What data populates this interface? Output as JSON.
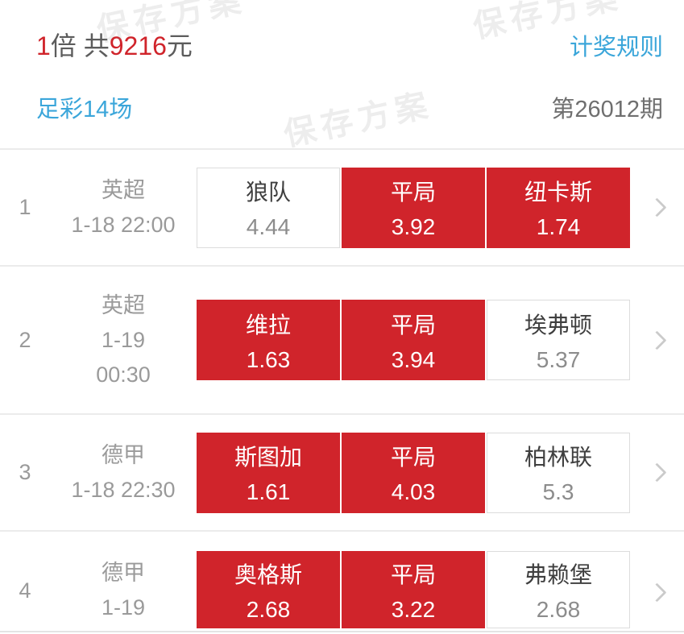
{
  "watermark": {
    "text": "保存方案"
  },
  "colors": {
    "accent_red": "#d0242b",
    "link_blue": "#3ba6da"
  },
  "header": {
    "stake_multiplier": "1",
    "multiplier_unit": "倍",
    "total_prefix": "共",
    "total_amount": "9216",
    "total_unit": "元",
    "rules_link": "计奖规则",
    "lottery_name": "足彩14场",
    "issue_number": "第26012期"
  },
  "matches": [
    {
      "index": "1",
      "meta_lines": [
        "英超",
        "1-18 22:00"
      ],
      "options": [
        {
          "name": "狼队",
          "odds": "4.44",
          "selected": false
        },
        {
          "name": "平局",
          "odds": "3.92",
          "selected": true
        },
        {
          "name": "纽卡斯",
          "odds": "1.74",
          "selected": true
        }
      ]
    },
    {
      "index": "2",
      "meta_lines": [
        "英超",
        "1-19",
        "00:30"
      ],
      "options": [
        {
          "name": "维拉",
          "odds": "1.63",
          "selected": true
        },
        {
          "name": "平局",
          "odds": "3.94",
          "selected": true
        },
        {
          "name": "埃弗顿",
          "odds": "5.37",
          "selected": false
        }
      ]
    },
    {
      "index": "3",
      "meta_lines": [
        "德甲",
        "1-18 22:30"
      ],
      "options": [
        {
          "name": "斯图加",
          "odds": "1.61",
          "selected": true
        },
        {
          "name": "平局",
          "odds": "4.03",
          "selected": true
        },
        {
          "name": "柏林联",
          "odds": "5.3",
          "selected": false
        }
      ]
    },
    {
      "index": "4",
      "meta_lines": [
        "德甲",
        "1-19"
      ],
      "options": [
        {
          "name": "奥格斯",
          "odds": "2.68",
          "selected": true
        },
        {
          "name": "平局",
          "odds": "3.22",
          "selected": true
        },
        {
          "name": "弗赖堡",
          "odds": "2.68",
          "selected": false
        }
      ]
    }
  ]
}
